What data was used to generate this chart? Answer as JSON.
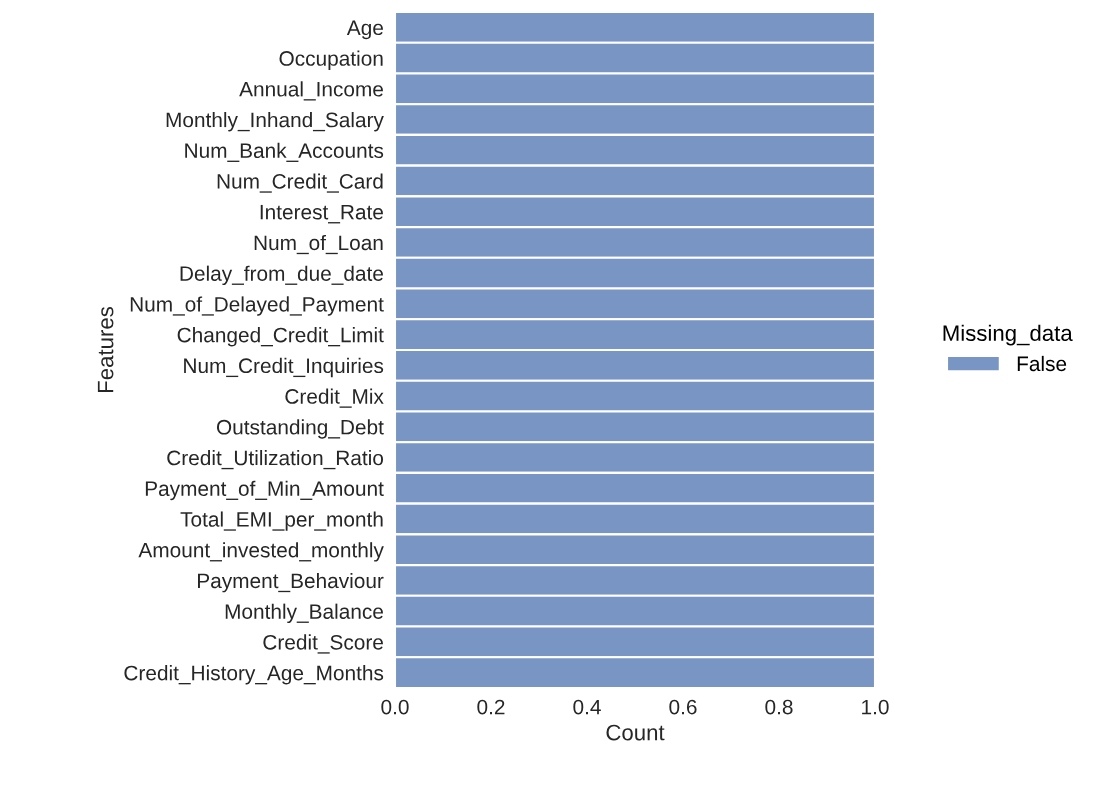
{
  "chart_data": {
    "type": "bar",
    "orientation": "horizontal",
    "xlabel": "Count",
    "ylabel": "Features",
    "legend_title": "Missing_data",
    "legend": "right",
    "categories": [
      "Age",
      "Occupation",
      "Annual_Income",
      "Monthly_Inhand_Salary",
      "Num_Bank_Accounts",
      "Num_Credit_Card",
      "Interest_Rate",
      "Num_of_Loan",
      "Delay_from_due_date",
      "Num_of_Delayed_Payment",
      "Changed_Credit_Limit",
      "Num_Credit_Inquiries",
      "Credit_Mix",
      "Outstanding_Debt",
      "Credit_Utilization_Ratio",
      "Payment_of_Min_Amount",
      "Total_EMI_per_month",
      "Amount_invested_monthly",
      "Payment_Behaviour",
      "Monthly_Balance",
      "Credit_Score",
      "Credit_History_Age_Months"
    ],
    "series": [
      {
        "name": "False",
        "color": "#7895c4",
        "values": [
          1,
          1,
          1,
          1,
          1,
          1,
          1,
          1,
          1,
          1,
          1,
          1,
          1,
          1,
          1,
          1,
          1,
          1,
          1,
          1,
          1,
          1
        ]
      }
    ],
    "xlim": [
      0,
      1
    ],
    "xticks": [
      {
        "value": 0,
        "label": "0.0"
      },
      {
        "value": 0.2,
        "label": "0.2"
      },
      {
        "value": 0.4,
        "label": "0.4"
      },
      {
        "value": 0.6,
        "label": "0.6"
      },
      {
        "value": 0.8,
        "label": "0.8"
      },
      {
        "value": 1,
        "label": "1.0"
      }
    ],
    "grid": false
  }
}
